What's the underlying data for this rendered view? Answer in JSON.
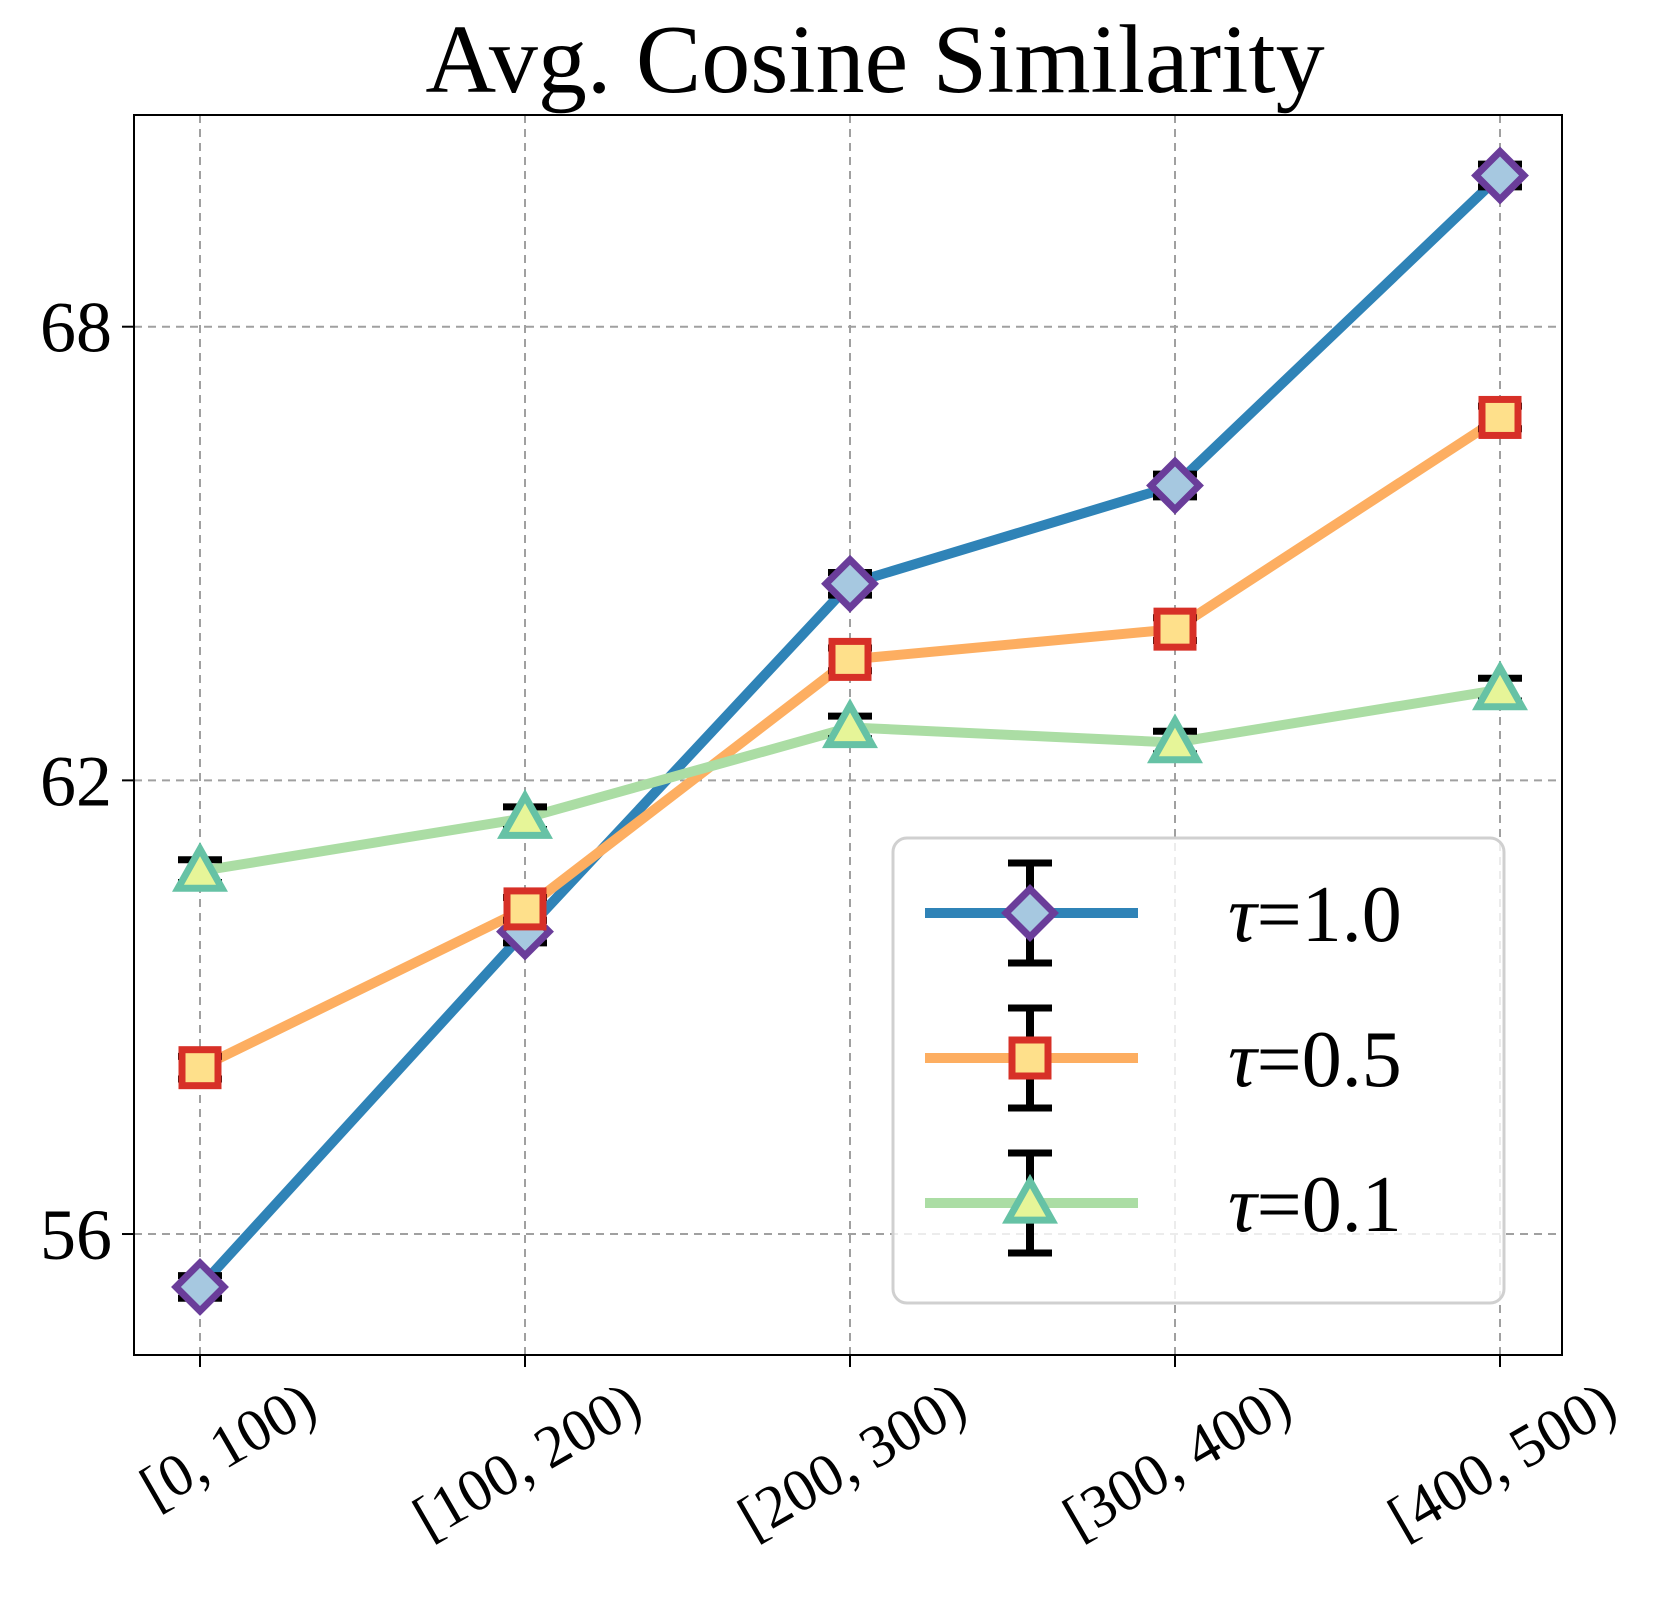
{
  "chart_data": {
    "type": "line",
    "title": "Avg. Cosine Similarity",
    "xlabel": "",
    "ylabel": "",
    "categories": [
      "[0, 100)",
      "[100, 200)",
      "[200, 300)",
      "[300, 400)",
      "[400, 500)"
    ],
    "yticks": [
      "56",
      "62",
      "68"
    ],
    "ylim": [
      54.4,
      70.8
    ],
    "grid": true,
    "legend_position": "lower-right",
    "series": [
      {
        "name": "τ=1.0",
        "tau": "1.0",
        "values": [
          55.3,
          60.0,
          64.6,
          65.9,
          70.0
        ],
        "errors": [
          0.15,
          0.15,
          0.15,
          0.15,
          0.15
        ],
        "line_color": "#2f83b7",
        "marker": "diamond",
        "marker_fill": "#a6c8e0",
        "marker_edge": "#6a3d9a"
      },
      {
        "name": "τ=0.5",
        "tau": "0.5",
        "values": [
          58.2,
          60.3,
          63.6,
          64.0,
          66.8
        ],
        "errors": [
          0.15,
          0.15,
          0.15,
          0.15,
          0.15
        ],
        "line_color": "#fdae61",
        "marker": "square",
        "marker_fill": "#fee08b",
        "marker_edge": "#d73027"
      },
      {
        "name": "τ=0.1",
        "tau": "0.1",
        "values": [
          60.8,
          61.5,
          62.7,
          62.5,
          63.2
        ],
        "errors": [
          0.15,
          0.15,
          0.15,
          0.15,
          0.15
        ],
        "line_color": "#abdda4",
        "marker": "triangle",
        "marker_fill": "#e6f598",
        "marker_edge": "#66c2a5"
      }
    ]
  }
}
